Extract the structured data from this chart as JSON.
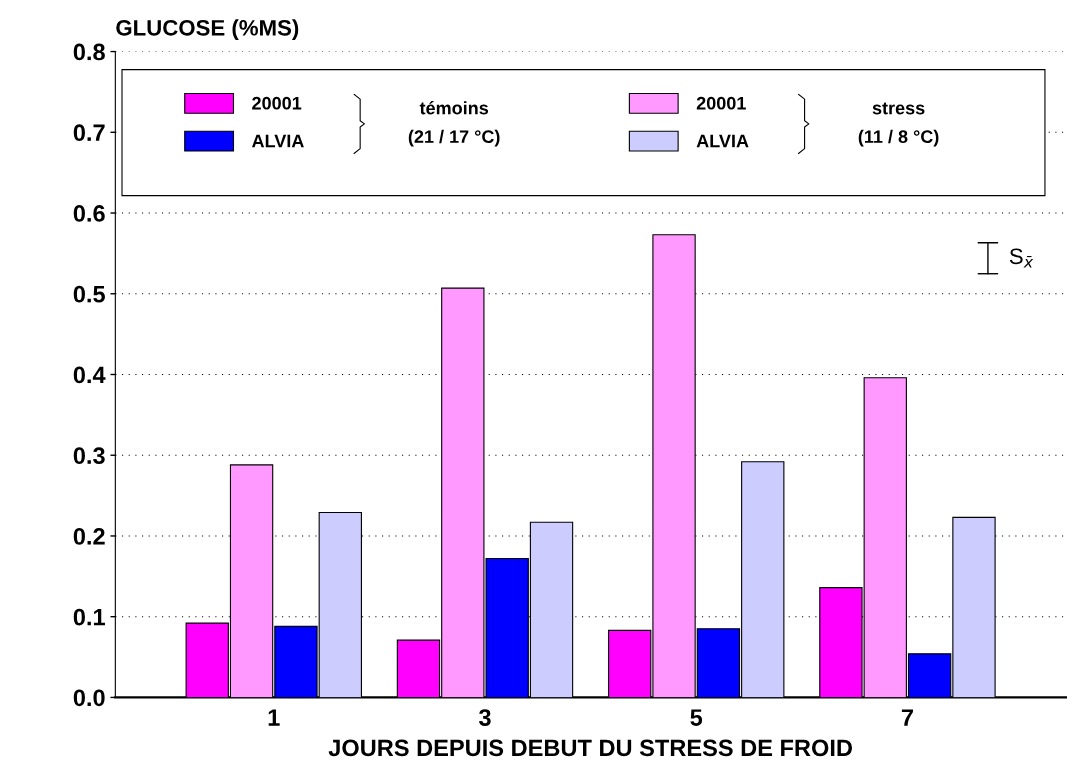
{
  "chart_data": {
    "type": "bar",
    "ylabel": "GLUCOSE (%MS)",
    "xlabel": "JOURS DEPUIS DEBUT DU STRESS DE FROID",
    "categories": [
      "1",
      "3",
      "5",
      "7"
    ],
    "series": [
      {
        "name": "20001",
        "color": "#ff00ff",
        "values": [
          0.092,
          0.071,
          0.083,
          0.136
        ]
      },
      {
        "name": "20001",
        "color": "#ff99ff",
        "values": [
          0.288,
          0.507,
          0.573,
          0.396
        ]
      },
      {
        "name": "ALVIA",
        "color": "#0000ff",
        "values": [
          0.088,
          0.172,
          0.085,
          0.054
        ]
      },
      {
        "name": "ALVIA",
        "color": "#ccccff",
        "values": [
          0.229,
          0.217,
          0.292,
          0.223
        ]
      }
    ],
    "ylim": [
      0,
      0.8
    ],
    "yticks": [
      {
        "value": 0,
        "label": "0.0"
      },
      0.1,
      0.2,
      0.3,
      0.4,
      0.5,
      0.6,
      0.7,
      0.8
    ],
    "grid": "y",
    "legend": "top",
    "annotations": [
      "témoins\n(21 / 17 °C)",
      "stress\n(11 / 8 °C)",
      "S$_{x̄}$"
    ]
  }
}
